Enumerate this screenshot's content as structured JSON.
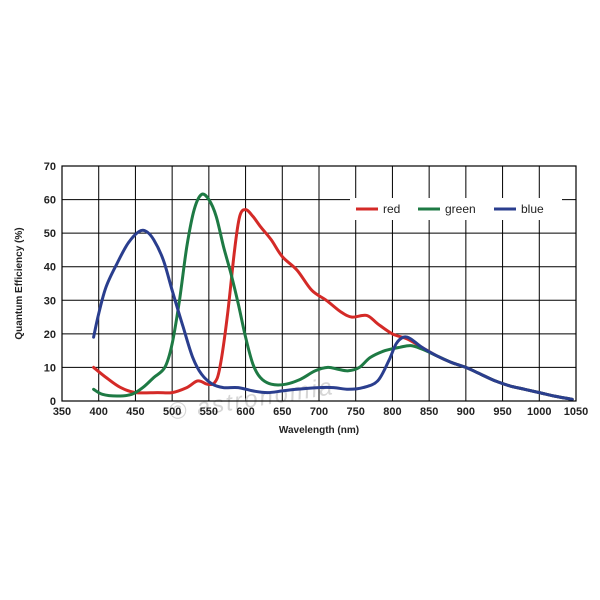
{
  "chart_data": {
    "type": "line",
    "xlabel": "Wavelength (nm)",
    "ylabel": "Quantum Efficiency (%)",
    "xlim": [
      350,
      1050
    ],
    "ylim": [
      0,
      70
    ],
    "xticks": [
      350,
      400,
      450,
      500,
      550,
      600,
      650,
      700,
      750,
      800,
      850,
      900,
      950,
      1000,
      1050
    ],
    "yticks": [
      0,
      10,
      20,
      30,
      40,
      50,
      60,
      70
    ],
    "grid": true,
    "legend_position": "top-right",
    "watermark": "© astronomia",
    "series": [
      {
        "name": "red",
        "color": "#d42a27",
        "points": [
          [
            393,
            10
          ],
          [
            410,
            7
          ],
          [
            430,
            4
          ],
          [
            450,
            2.5
          ],
          [
            480,
            2.5
          ],
          [
            500,
            2.5
          ],
          [
            520,
            4
          ],
          [
            535,
            6
          ],
          [
            548,
            5
          ],
          [
            558,
            5.5
          ],
          [
            565,
            10
          ],
          [
            575,
            25
          ],
          [
            585,
            45
          ],
          [
            592,
            55
          ],
          [
            600,
            57
          ],
          [
            610,
            55
          ],
          [
            620,
            52
          ],
          [
            635,
            48
          ],
          [
            650,
            43
          ],
          [
            670,
            39
          ],
          [
            690,
            33
          ],
          [
            710,
            30
          ],
          [
            730,
            26.5
          ],
          [
            745,
            25
          ],
          [
            765,
            25.5
          ],
          [
            780,
            23
          ],
          [
            800,
            20
          ],
          [
            820,
            18.5
          ],
          [
            840,
            16
          ],
          [
            860,
            13.5
          ],
          [
            880,
            11.5
          ],
          [
            900,
            10
          ],
          [
            920,
            8
          ],
          [
            940,
            6
          ],
          [
            960,
            4.5
          ],
          [
            980,
            3.5
          ],
          [
            1000,
            2.5
          ],
          [
            1020,
            1.5
          ],
          [
            1045,
            0.5
          ]
        ]
      },
      {
        "name": "green",
        "color": "#1e7a44",
        "points": [
          [
            393,
            3.5
          ],
          [
            405,
            2
          ],
          [
            425,
            1.5
          ],
          [
            445,
            2
          ],
          [
            460,
            4
          ],
          [
            475,
            7
          ],
          [
            490,
            10
          ],
          [
            500,
            17
          ],
          [
            510,
            30
          ],
          [
            520,
            46
          ],
          [
            530,
            57
          ],
          [
            540,
            61.5
          ],
          [
            550,
            60
          ],
          [
            560,
            55
          ],
          [
            570,
            46
          ],
          [
            580,
            38
          ],
          [
            590,
            29
          ],
          [
            600,
            19
          ],
          [
            610,
            11
          ],
          [
            620,
            7
          ],
          [
            635,
            5
          ],
          [
            655,
            5
          ],
          [
            675,
            6.5
          ],
          [
            695,
            9
          ],
          [
            712,
            10
          ],
          [
            725,
            9.5
          ],
          [
            740,
            9
          ],
          [
            755,
            10
          ],
          [
            770,
            13
          ],
          [
            790,
            15
          ],
          [
            810,
            16
          ],
          [
            825,
            16.5
          ],
          [
            840,
            15.5
          ],
          [
            860,
            13.5
          ],
          [
            880,
            11.5
          ],
          [
            900,
            10
          ],
          [
            920,
            8
          ],
          [
            940,
            6
          ],
          [
            960,
            4.5
          ],
          [
            980,
            3.5
          ],
          [
            1000,
            2.5
          ],
          [
            1020,
            1.5
          ],
          [
            1045,
            0.5
          ]
        ]
      },
      {
        "name": "blue",
        "color": "#2a3e8e",
        "points": [
          [
            393,
            19
          ],
          [
            400,
            26
          ],
          [
            410,
            34
          ],
          [
            425,
            41
          ],
          [
            440,
            47
          ],
          [
            455,
            50.5
          ],
          [
            465,
            50.5
          ],
          [
            475,
            48
          ],
          [
            488,
            42
          ],
          [
            500,
            33
          ],
          [
            515,
            22
          ],
          [
            528,
            13
          ],
          [
            540,
            8
          ],
          [
            555,
            5
          ],
          [
            570,
            4
          ],
          [
            590,
            4
          ],
          [
            610,
            3
          ],
          [
            630,
            2.5
          ],
          [
            650,
            3
          ],
          [
            670,
            3.5
          ],
          [
            700,
            4
          ],
          [
            720,
            4
          ],
          [
            740,
            3.5
          ],
          [
            760,
            4
          ],
          [
            780,
            6
          ],
          [
            795,
            12
          ],
          [
            805,
            17
          ],
          [
            815,
            19
          ],
          [
            825,
            18.5
          ],
          [
            840,
            16
          ],
          [
            860,
            13.5
          ],
          [
            880,
            11.5
          ],
          [
            900,
            10
          ],
          [
            920,
            8
          ],
          [
            940,
            6
          ],
          [
            960,
            4.5
          ],
          [
            980,
            3.5
          ],
          [
            1000,
            2.5
          ],
          [
            1020,
            1.5
          ],
          [
            1045,
            0.5
          ]
        ]
      }
    ]
  }
}
